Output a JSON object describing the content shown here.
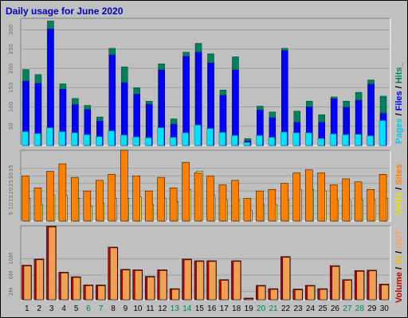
{
  "title": "Daily usage for June 2020",
  "colors": {
    "background": "#c0c0c0",
    "plot_bg": "#c0c0c0",
    "grid": "#a0a0a0",
    "title": "#0000c0",
    "hits": "#00805c",
    "files": "#0000ff",
    "pages": "#00e0ff",
    "visits": "#ffa000",
    "sites": "#ff8000",
    "kbytes": "#ff0000",
    "in": "#ffc000",
    "out": "#ffaa55",
    "weekday_label": "#000000",
    "weekend_label": "#00805c"
  },
  "legends": {
    "top": {
      "pages": "Pages",
      "sep1": " / ",
      "files": "Files",
      "sep2": " / ",
      "hits": "Hits_"
    },
    "mid": {
      "visits": "Visits",
      "sep": " / ",
      "sites": "Sites"
    },
    "bot": {
      "volume": "Volume",
      "sep1": " / ",
      "in": "IN",
      "sep2": " / ",
      "out": "OUT"
    }
  },
  "day_labels": [
    "1",
    "2",
    "3",
    "4",
    "5",
    "6",
    "7",
    "8",
    "9",
    "10",
    "11",
    "12",
    "13",
    "14",
    "15",
    "16",
    "17",
    "18",
    "19",
    "20",
    "21",
    "22",
    "23",
    "24",
    "25",
    "26",
    "27",
    "28",
    "29",
    "30"
  ],
  "weekend_days": [
    6,
    7,
    13,
    14,
    20,
    21,
    27,
    28
  ],
  "chart_data": [
    {
      "type": "bar",
      "name": "hits-files-pages",
      "categories": [
        "1",
        "2",
        "3",
        "4",
        "5",
        "6",
        "7",
        "8",
        "9",
        "10",
        "11",
        "12",
        "13",
        "14",
        "15",
        "16",
        "17",
        "18",
        "19",
        "20",
        "21",
        "22",
        "23",
        "24",
        "25",
        "26",
        "27",
        "28",
        "29",
        "30"
      ],
      "ylim": [
        0,
        330
      ],
      "yticks": [
        "50",
        "100",
        "150",
        "200",
        "250",
        "300"
      ],
      "series": [
        {
          "name": "Hits",
          "values": [
            197,
            184,
            323,
            160,
            122,
            104,
            74,
            252,
            204,
            150,
            115,
            212,
            69,
            242,
            265,
            238,
            144,
            230,
            18,
            102,
            87,
            252,
            89,
            115,
            80,
            126,
            115,
            138,
            170,
            128
          ]
        },
        {
          "name": "Files",
          "values": [
            167,
            161,
            302,
            146,
            106,
            93,
            63,
            235,
            163,
            133,
            107,
            196,
            55,
            231,
            242,
            214,
            130,
            196,
            12,
            92,
            72,
            246,
            60,
            100,
            60,
            121,
            99,
            117,
            159,
            83
          ]
        },
        {
          "name": "Pages",
          "values": [
            36,
            31,
            46,
            36,
            33,
            28,
            23,
            38,
            27,
            22,
            20,
            46,
            21,
            33,
            53,
            44,
            34,
            26,
            8,
            26,
            21,
            35,
            33,
            33,
            18,
            30,
            28,
            29,
            25,
            65
          ]
        }
      ]
    },
    {
      "type": "bar",
      "name": "visits-sites",
      "categories": [
        "1",
        "2",
        "3",
        "4",
        "5",
        "6",
        "7",
        "8",
        "9",
        "10",
        "11",
        "12",
        "13",
        "14",
        "15",
        "16",
        "17",
        "18",
        "19",
        "20",
        "21",
        "22",
        "23",
        "24",
        "25",
        "26",
        "27",
        "28",
        "29",
        "30"
      ],
      "ylim": [
        0,
        47
      ],
      "yticks": [
        "5",
        "10",
        "15",
        "20",
        "25",
        "30",
        "35"
      ],
      "series": [
        {
          "name": "Visits",
          "values": [
            30,
            22,
            33,
            38,
            29,
            20,
            27,
            31,
            47,
            30,
            20,
            29,
            22,
            39,
            32,
            30,
            24,
            27,
            15,
            20,
            21,
            25,
            32,
            34,
            32,
            24,
            28,
            26,
            21,
            31
          ]
        },
        {
          "name": "Sites",
          "values": [
            15,
            11,
            17,
            17,
            15,
            10,
            12,
            15,
            15,
            16,
            11,
            15,
            13,
            21,
            33,
            17,
            14,
            14,
            7,
            11,
            11,
            14,
            21,
            21,
            20,
            14,
            14,
            14,
            14,
            15
          ]
        }
      ]
    },
    {
      "type": "bar",
      "name": "volume",
      "categories": [
        "1",
        "2",
        "3",
        "4",
        "5",
        "6",
        "7",
        "8",
        "9",
        "10",
        "11",
        "12",
        "13",
        "14",
        "15",
        "16",
        "17",
        "18",
        "19",
        "20",
        "21",
        "22",
        "23",
        "24",
        "25",
        "26",
        "27",
        "28",
        "29",
        "30"
      ],
      "ylim": [
        0,
        18
      ],
      "yticks": [
        "2M",
        "6M",
        "10M"
      ],
      "series": [
        {
          "name": "Volume",
          "values": [
            8.4,
            9.9,
            17.9,
            6.7,
            5.6,
            3.6,
            3.6,
            12.8,
            7.4,
            7.3,
            5.7,
            7.3,
            2.7,
            9.9,
            9.5,
            9.5,
            4.9,
            9.5,
            0.4,
            3.5,
            2.7,
            10.5,
            2.6,
            3.5,
            2.7,
            8.3,
            4.9,
            7.1,
            7.2,
            3.8
          ]
        }
      ]
    }
  ]
}
